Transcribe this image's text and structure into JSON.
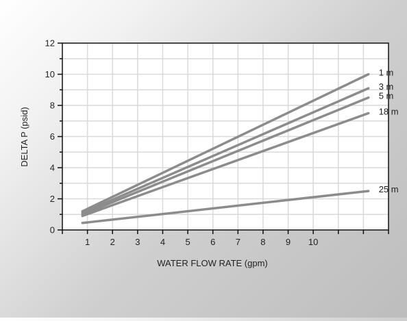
{
  "chart_data": {
    "type": "line",
    "xlabel": "WATER FLOW RATE (gpm)",
    "ylabel": "DELTA P (psid)",
    "xlim": [
      0,
      13
    ],
    "ylim": [
      0,
      12
    ],
    "x_ticks": [
      1,
      2,
      3,
      4,
      5,
      6,
      7,
      8,
      9,
      10
    ],
    "y_ticks": [
      0,
      2,
      4,
      6,
      8,
      10,
      12
    ],
    "grid": true,
    "legend": "line-end labels",
    "series": [
      {
        "name": "1 m",
        "x": [
          0.8,
          12.2
        ],
        "y": [
          1.2,
          10.0
        ],
        "color": "#8c8c8c"
      },
      {
        "name": "3 m",
        "x": [
          0.8,
          12.2
        ],
        "y": [
          1.1,
          9.1
        ],
        "color": "#8c8c8c"
      },
      {
        "name": "5 m",
        "x": [
          0.8,
          12.2
        ],
        "y": [
          1.0,
          8.5
        ],
        "color": "#8c8c8c"
      },
      {
        "name": "18 m",
        "x": [
          0.8,
          12.2
        ],
        "y": [
          0.9,
          7.5
        ],
        "color": "#8c8c8c"
      },
      {
        "name": "25 m",
        "x": [
          0.8,
          12.2
        ],
        "y": [
          0.45,
          2.5
        ],
        "color": "#8c8c8c"
      }
    ]
  }
}
